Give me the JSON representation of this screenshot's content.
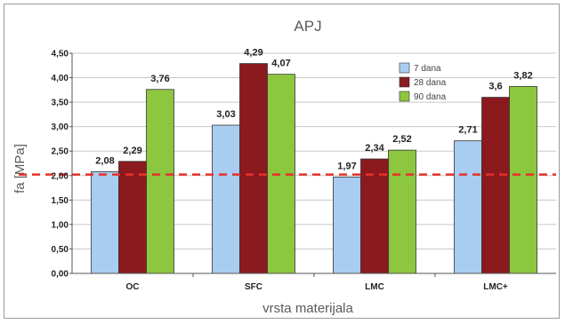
{
  "chart_data": {
    "type": "bar",
    "title": "APJ",
    "xlabel": "vrsta materijala",
    "ylabel": "fa [MPa]",
    "categories": [
      "OC",
      "SFC",
      "LMC",
      "LMC+"
    ],
    "series": [
      {
        "name": "7 dana",
        "color": "#a9cdf0",
        "values": [
          2.08,
          3.03,
          1.97,
          2.71
        ],
        "labels": [
          "2,08",
          "3,03",
          "1,97",
          "2,71"
        ]
      },
      {
        "name": "28 dana",
        "color": "#8b1a1f",
        "values": [
          2.29,
          4.29,
          2.34,
          3.6
        ],
        "labels": [
          "2,29",
          "4,29",
          "2,34",
          "3,6"
        ]
      },
      {
        "name": "90 dana",
        "color": "#8dc63f",
        "values": [
          3.76,
          4.07,
          2.52,
          3.82
        ],
        "labels": [
          "3,76",
          "4,07",
          "2,52",
          "3,82"
        ]
      }
    ],
    "ylim": [
      0,
      4.5
    ],
    "yticks": [
      "0,00",
      "0,50",
      "1,00",
      "1,50",
      "2,00",
      "2,50",
      "3,00",
      "3,50",
      "4,00",
      "4,50"
    ],
    "reference_line": {
      "value": 2.02,
      "color": "#e8302a",
      "style": "dashed"
    },
    "grid": true,
    "legend_position": "top-right"
  }
}
